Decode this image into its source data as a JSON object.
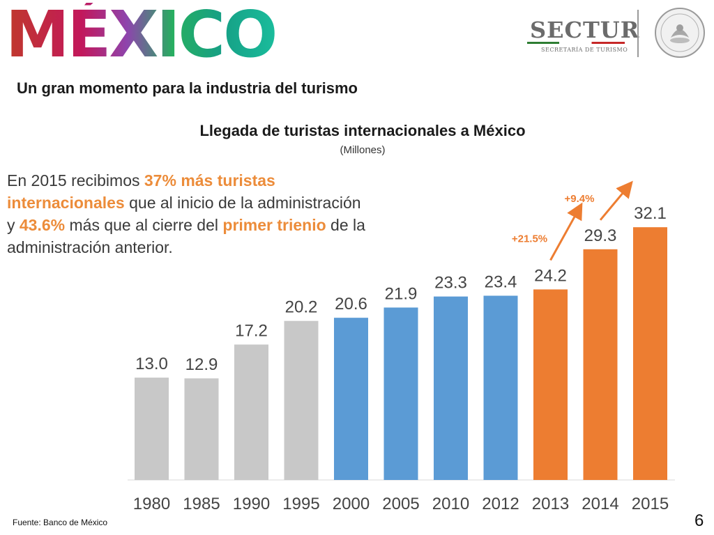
{
  "header": {
    "logo_text": "MÉXICO",
    "sectur_name": "SECTUR",
    "sectur_subtitle": "SECRETARÍA DE TURISMO"
  },
  "subtitle": "Un gran momento para la industria del turismo",
  "chart_title": "Llegada de turistas internacionales a México",
  "chart_unit": "(Millones)",
  "note": {
    "p1": "En 2015 recibimos ",
    "h1": "37% más turistas internacionales",
    "p2": " que al inicio de la administración y ",
    "h2": "43.6%",
    "p3": " más que al cierre del ",
    "h3": "primer trienio",
    "p4": " de la administración anterior."
  },
  "source": "Fuente: Banco de México",
  "page_number": "6",
  "colors": {
    "gray": "#c8c8c8",
    "blue": "#5b9bd5",
    "orange": "#ed7d31",
    "arrow": "#ed7d31"
  },
  "chart_data": {
    "type": "bar",
    "title": "Llegada de turistas internacionales a México",
    "ylabel": "(Millones)",
    "xlabel": "",
    "categories": [
      "1980",
      "1985",
      "1990",
      "1995",
      "2000",
      "2005",
      "2010",
      "2012",
      "2013",
      "2014",
      "2015"
    ],
    "values": [
      13.0,
      12.9,
      17.2,
      20.2,
      20.6,
      21.9,
      23.3,
      23.4,
      24.2,
      29.3,
      32.1
    ],
    "value_labels": [
      "13.0",
      "12.9",
      "17.2",
      "20.2",
      "20.6",
      "21.9",
      "23.3",
      "23.4",
      "24.2",
      "29.3",
      "32.1"
    ],
    "bar_color_groups": [
      "gray",
      "gray",
      "gray",
      "gray",
      "blue",
      "blue",
      "blue",
      "blue",
      "orange",
      "orange",
      "orange"
    ],
    "ylim": [
      0,
      33
    ],
    "grid": false,
    "annotations": [
      {
        "text": "+21.5%",
        "from": "2013",
        "to": "2014"
      },
      {
        "text": "+9.4%",
        "from": "2014",
        "to": "2015"
      }
    ]
  }
}
